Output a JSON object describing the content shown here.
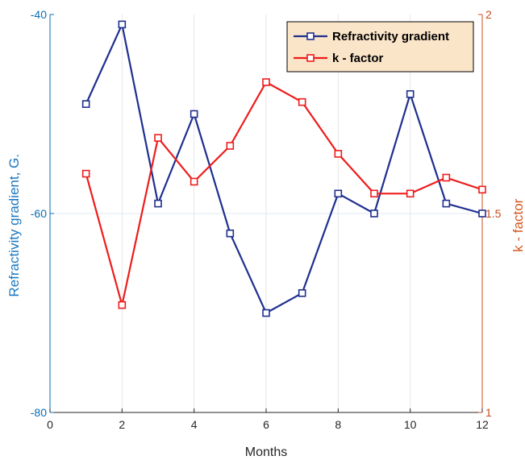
{
  "chart_data": {
    "type": "line",
    "title": "",
    "xlabel": "Months",
    "x": [
      1,
      2,
      3,
      4,
      5,
      6,
      7,
      8,
      9,
      10,
      11,
      12
    ],
    "xlim": [
      0,
      12
    ],
    "xticks": [
      0,
      2,
      4,
      6,
      8,
      10,
      12
    ],
    "grid": "x-only",
    "legend_position": "top-right",
    "y_left": {
      "label": "Refractivity gradient, G.",
      "lim": [
        -80,
        -40
      ],
      "ticks": [
        -80,
        -60,
        -40
      ],
      "color": "#0a6fb4"
    },
    "y_right": {
      "label": "k - factor",
      "lim": [
        1,
        2
      ],
      "ticks": [
        1,
        1.5,
        2
      ],
      "color": "#c8501e"
    },
    "series": [
      {
        "name": "Refractivity gradient",
        "axis": "left",
        "color": "#1f2f8f",
        "marker": "square",
        "values": [
          -49,
          -41,
          -59,
          -50,
          -62,
          -70,
          -68,
          -58,
          -60,
          -48,
          -59,
          -60
        ]
      },
      {
        "name": "k - factor",
        "axis": "right",
        "color": "#ee1c1c",
        "marker": "square",
        "values": [
          1.6,
          1.27,
          1.69,
          1.58,
          1.67,
          1.83,
          1.78,
          1.65,
          1.55,
          1.55,
          1.59,
          1.56
        ]
      }
    ]
  }
}
